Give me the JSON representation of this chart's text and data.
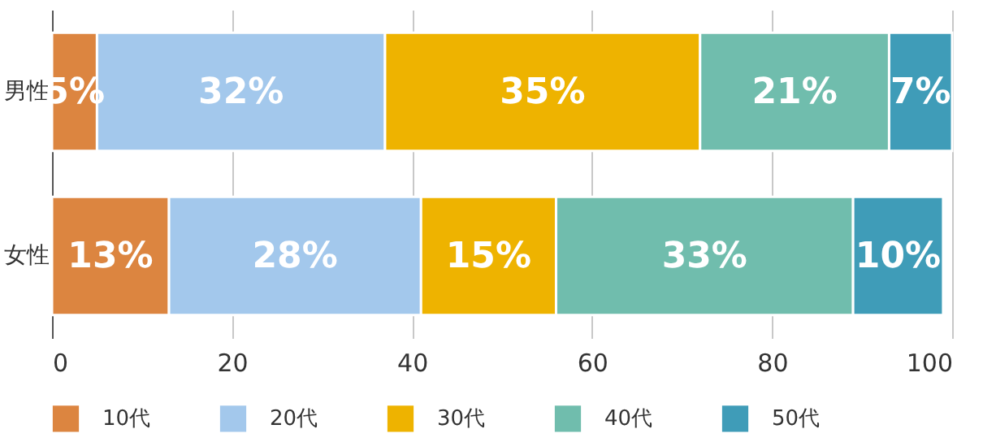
{
  "chart_data": {
    "type": "bar",
    "orientation": "horizontal",
    "stacked": true,
    "categories": [
      "男性",
      "女性"
    ],
    "series": [
      {
        "name": "10代",
        "color": "#dc8540",
        "values": [
          5,
          13
        ],
        "value_labels": [
          "5%",
          "13%"
        ]
      },
      {
        "name": "20代",
        "color": "#a3c8ec",
        "values": [
          32,
          28
        ],
        "value_labels": [
          "32%",
          "28%"
        ]
      },
      {
        "name": "30代",
        "color": "#eeb300",
        "values": [
          35,
          15
        ],
        "value_labels": [
          "35%",
          "15%"
        ]
      },
      {
        "name": "40代",
        "color": "#70bdad",
        "values": [
          21,
          33
        ],
        "value_labels": [
          "21%",
          "33%"
        ]
      },
      {
        "name": "50代",
        "color": "#3f9cb8",
        "values": [
          7,
          10
        ],
        "value_labels": [
          "7%",
          "10%"
        ]
      }
    ],
    "xlim": [
      0,
      100
    ],
    "xticks": [
      0,
      20,
      40,
      60,
      80,
      100
    ],
    "grid": "x",
    "legend": "bottom"
  }
}
